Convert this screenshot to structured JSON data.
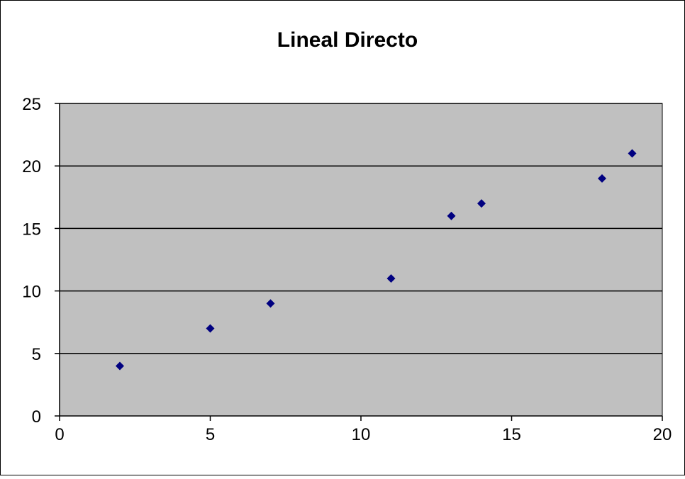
{
  "chart_data": {
    "type": "scatter",
    "title": "Lineal Directo",
    "xlabel": "",
    "ylabel": "",
    "xlim": [
      0,
      20
    ],
    "ylim": [
      0,
      25
    ],
    "xticks": [
      0,
      5,
      10,
      15,
      20
    ],
    "yticks": [
      0,
      5,
      10,
      15,
      20,
      25
    ],
    "grid": "horizontal",
    "legend": "none",
    "colors": {
      "plot_background": "#c0c0c0",
      "marker": "#000080",
      "gridline": "#000000",
      "border": "#000000"
    },
    "series": [
      {
        "x": [
          2,
          5,
          7,
          11,
          13,
          14,
          18,
          19
        ],
        "y": [
          4,
          7,
          9,
          11,
          16,
          17,
          19,
          21
        ]
      }
    ]
  }
}
